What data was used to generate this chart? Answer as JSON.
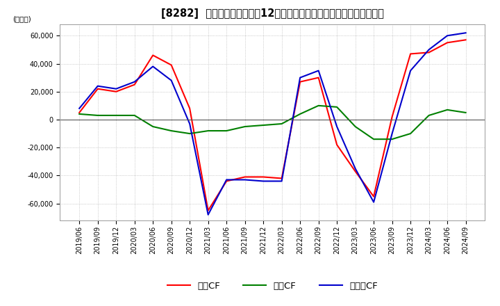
{
  "title": "[8282]  キャッシュフローの12か月移動合計の対前年同期増減額の推移",
  "ylabel": "(百万円)",
  "ylim": [
    -72000,
    68000
  ],
  "yticks": [
    -60000,
    -40000,
    -20000,
    0,
    20000,
    40000,
    60000
  ],
  "legend_labels": [
    "営業CF",
    "投資CF",
    "フリーCF"
  ],
  "colors": {
    "operating": "#ff0000",
    "investing": "#008000",
    "free": "#0000cc"
  },
  "dates": [
    "2019/06",
    "2019/09",
    "2019/12",
    "2020/03",
    "2020/06",
    "2020/09",
    "2020/12",
    "2021/03",
    "2021/06",
    "2021/09",
    "2021/12",
    "2022/03",
    "2022/06",
    "2022/09",
    "2022/12",
    "2023/03",
    "2023/06",
    "2023/09",
    "2023/12",
    "2024/03",
    "2024/06",
    "2024/09"
  ],
  "operating_cf": [
    5000,
    22000,
    20000,
    25000,
    46000,
    39000,
    8000,
    -65000,
    -44000,
    -41000,
    -41000,
    -42000,
    27000,
    30000,
    -18000,
    -37000,
    -55000,
    2000,
    47000,
    48000,
    55000,
    57000
  ],
  "investing_cf": [
    4000,
    3000,
    3000,
    3000,
    -5000,
    -8000,
    -10000,
    -8000,
    -8000,
    -5000,
    -4000,
    -3000,
    4000,
    10000,
    9000,
    -5000,
    -14000,
    -14000,
    -10000,
    3000,
    7000,
    5000
  ],
  "free_cf": [
    8000,
    24000,
    22000,
    27000,
    38000,
    28000,
    -3000,
    -68000,
    -43000,
    -43000,
    -44000,
    -44000,
    30000,
    35000,
    -5000,
    -35000,
    -59000,
    -10000,
    35000,
    50000,
    60000,
    62000
  ],
  "background_color": "#ffffff",
  "grid_color": "#aaaaaa",
  "title_fontsize": 10.5,
  "tick_fontsize": 7,
  "ylabel_fontsize": 7.5,
  "legend_fontsize": 9.5,
  "linewidth": 1.5
}
